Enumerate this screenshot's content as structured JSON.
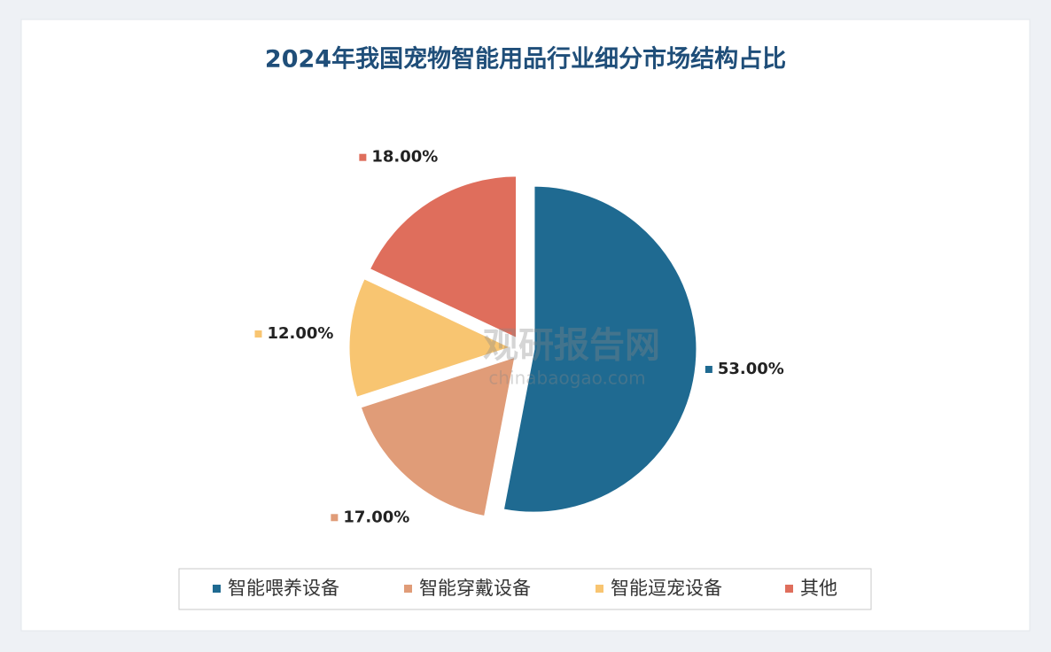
{
  "chart_data": {
    "type": "pie",
    "title": "2024年我国宠物智能用品行业细分市场结构占比",
    "categories": [
      "智能喂养设备",
      "智能穿戴设备",
      "智能逗宠设备",
      "其他"
    ],
    "values": [
      53,
      17,
      12,
      18
    ],
    "value_labels": [
      "53.00%",
      "17.00%",
      "12.00%",
      "18.00%"
    ],
    "colors": [
      "#1f6a91",
      "#e09c78",
      "#f8c571",
      "#df6e5c"
    ],
    "legend": "bottom"
  },
  "watermark": {
    "name": "观研报告网",
    "url": "chinabaogao.com"
  }
}
